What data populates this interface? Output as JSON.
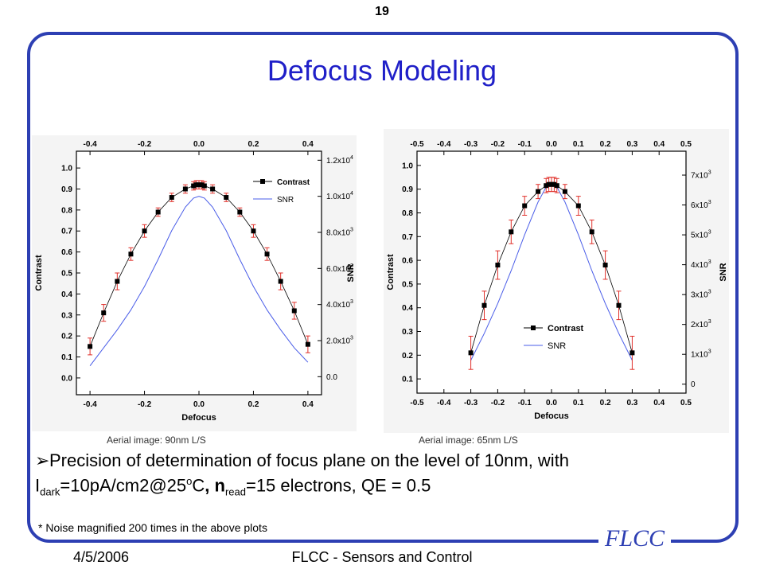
{
  "slide_number": "19",
  "title": "Defocus Modeling",
  "bullet": {
    "arrow": "➢",
    "t1": "Precision of determination of focus plane on the level of 10nm, with ",
    "t2": "I",
    "sub1": "dark",
    "t3": "=10pA/cm2@25",
    "sup1": "o",
    "t4": "C",
    "t5": ", n",
    "sub2": "read",
    "t6": "=15 electrons, QE = 0.5"
  },
  "footnote": "* Noise magnified 200 times in the above plots",
  "logo": "FLCC",
  "footer": {
    "date": "4/5/2006",
    "center": "FLCC - Sensors and Control"
  },
  "captions": {
    "left": "Aerial image: 90nm L/S",
    "right": "Aerial image: 65nm L/S"
  },
  "chart_data": [
    {
      "type": "line",
      "title": "",
      "xlabel": "Defocus",
      "ylabel": "Contrast",
      "y2label": "SNR",
      "xlim": [
        -0.45,
        0.45
      ],
      "ylim": [
        -0.08,
        1.08
      ],
      "y2lim": [
        -1000,
        12500
      ],
      "xticks": [
        "-0.4",
        "-0.2",
        "0.0",
        "0.2",
        "0.4"
      ],
      "xtick_values": [
        -0.4,
        -0.2,
        0.0,
        0.2,
        0.4
      ],
      "yticks": [
        "0.0",
        "0.1",
        "0.2",
        "0.3",
        "0.4",
        "0.5",
        "0.6",
        "0.7",
        "0.8",
        "0.9",
        "1.0"
      ],
      "ytick_values": [
        0,
        0.1,
        0.2,
        0.3,
        0.4,
        0.5,
        0.6,
        0.7,
        0.8,
        0.9,
        1.0
      ],
      "y2ticks": [
        "0.0",
        "2.0x10",
        "4.0x10",
        "6.0x10",
        "8.0x10",
        "1.0x10",
        "1.2x10"
      ],
      "y2tick_exps": [
        "",
        "3",
        "3",
        "3",
        "3",
        "4",
        "4"
      ],
      "y2tick_values": [
        0,
        2000,
        4000,
        6000,
        8000,
        10000,
        12000
      ],
      "legend": [
        "Contrast",
        "SNR"
      ],
      "legend_position": "top-right",
      "series": [
        {
          "name": "Contrast",
          "color": "#000000",
          "marker": "square",
          "x": [
            -0.4,
            -0.35,
            -0.3,
            -0.25,
            -0.2,
            -0.15,
            -0.1,
            -0.05,
            -0.02,
            -0.01,
            0.0,
            0.01,
            0.02,
            0.05,
            0.1,
            0.15,
            0.2,
            0.25,
            0.3,
            0.35,
            0.4
          ],
          "y": [
            0.15,
            0.31,
            0.46,
            0.59,
            0.7,
            0.79,
            0.86,
            0.9,
            0.915,
            0.92,
            0.92,
            0.92,
            0.915,
            0.9,
            0.86,
            0.79,
            0.7,
            0.59,
            0.46,
            0.32,
            0.16
          ],
          "err": [
            0.04,
            0.04,
            0.04,
            0.03,
            0.03,
            0.02,
            0.02,
            0.02,
            0.02,
            0.02,
            0.02,
            0.02,
            0.02,
            0.02,
            0.02,
            0.02,
            0.03,
            0.03,
            0.04,
            0.04,
            0.04
          ],
          "error_color": "#e0302a"
        },
        {
          "name": "SNR",
          "color": "#4a5de8",
          "axis": "right",
          "x": [
            -0.4,
            -0.35,
            -0.3,
            -0.25,
            -0.2,
            -0.15,
            -0.1,
            -0.05,
            -0.02,
            0.0,
            0.02,
            0.05,
            0.1,
            0.15,
            0.2,
            0.25,
            0.3,
            0.35,
            0.4
          ],
          "y": [
            600,
            1600,
            2600,
            3700,
            5000,
            6500,
            8100,
            9400,
            9900,
            10000,
            9900,
            9400,
            8100,
            6500,
            5000,
            3700,
            2600,
            1600,
            800
          ]
        }
      ]
    },
    {
      "type": "line",
      "title": "",
      "xlabel": "Defocus",
      "ylabel": "Contrast",
      "y2label": "SNR",
      "xlim": [
        -0.5,
        0.5
      ],
      "ylim": [
        0.04,
        1.06
      ],
      "y2lim": [
        -300,
        7800
      ],
      "xticks": [
        "-0.5",
        "-0.4",
        "-0.3",
        "-0.2",
        "-0.1",
        "0.0",
        "0.1",
        "0.2",
        "0.3",
        "0.4",
        "0.5"
      ],
      "xtick_values": [
        -0.5,
        -0.4,
        -0.3,
        -0.2,
        -0.1,
        0.0,
        0.1,
        0.2,
        0.3,
        0.4,
        0.5
      ],
      "yticks": [
        "0.1",
        "0.2",
        "0.3",
        "0.4",
        "0.5",
        "0.6",
        "0.7",
        "0.8",
        "0.9",
        "1.0"
      ],
      "ytick_values": [
        0.1,
        0.2,
        0.3,
        0.4,
        0.5,
        0.6,
        0.7,
        0.8,
        0.9,
        1.0
      ],
      "y2ticks": [
        "0",
        "1x10",
        "2x10",
        "3x10",
        "4x10",
        "5x10",
        "6x10",
        "7x10"
      ],
      "y2tick_exps": [
        "",
        "3",
        "3",
        "3",
        "3",
        "3",
        "3",
        "3"
      ],
      "y2tick_values": [
        0,
        1000,
        2000,
        3000,
        4000,
        5000,
        6000,
        7000
      ],
      "legend": [
        "Contrast",
        "SNR"
      ],
      "legend_position": "bottom-left",
      "series": [
        {
          "name": "Contrast",
          "color": "#000000",
          "marker": "square",
          "x": [
            -0.3,
            -0.25,
            -0.2,
            -0.15,
            -0.1,
            -0.05,
            -0.02,
            -0.01,
            0.0,
            0.01,
            0.02,
            0.05,
            0.1,
            0.15,
            0.2,
            0.25,
            0.3
          ],
          "y": [
            0.21,
            0.41,
            0.58,
            0.72,
            0.83,
            0.89,
            0.915,
            0.92,
            0.92,
            0.92,
            0.915,
            0.89,
            0.83,
            0.72,
            0.58,
            0.41,
            0.21
          ],
          "err": [
            0.07,
            0.06,
            0.06,
            0.05,
            0.04,
            0.03,
            0.03,
            0.03,
            0.03,
            0.03,
            0.03,
            0.03,
            0.04,
            0.05,
            0.06,
            0.06,
            0.07
          ],
          "error_color": "#e0302a"
        },
        {
          "name": "SNR",
          "color": "#4a5de8",
          "axis": "right",
          "x": [
            -0.3,
            -0.25,
            -0.2,
            -0.15,
            -0.1,
            -0.05,
            -0.02,
            0.0,
            0.02,
            0.05,
            0.1,
            0.15,
            0.2,
            0.25,
            0.3
          ],
          "y": [
            800,
            1700,
            2700,
            3800,
            5000,
            6100,
            6600,
            6700,
            6600,
            6100,
            5000,
            3800,
            2700,
            1700,
            800
          ]
        }
      ]
    }
  ]
}
